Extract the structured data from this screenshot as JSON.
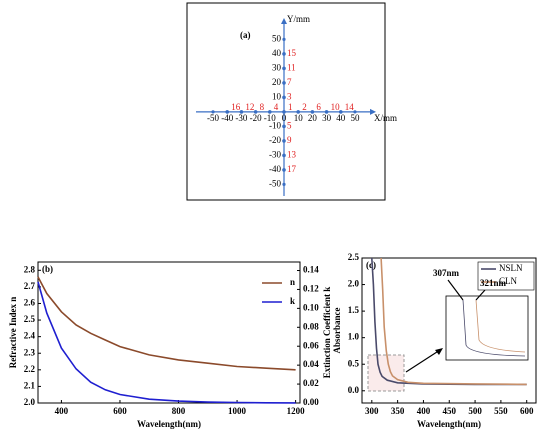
{
  "chart_data": [
    {
      "type": "scatter",
      "title": "(a)",
      "x_label": "X/mm",
      "y_label": "Y/mm",
      "xlim": [
        -62,
        62
      ],
      "ylim": [
        -58,
        62
      ],
      "xticks": [
        -50,
        -40,
        -30,
        -20,
        -10,
        0,
        10,
        20,
        30,
        40,
        50
      ],
      "yticks": [
        -50,
        -40,
        -30,
        -20,
        -10,
        10,
        20,
        30,
        40,
        50
      ],
      "axis_color": "#3a6fc4",
      "label_color": "#e02020",
      "x": [
        -40,
        -30,
        -20,
        -10,
        0,
        10,
        20,
        30,
        40,
        0,
        0,
        0,
        0,
        0,
        0,
        0,
        0
      ],
      "values": [
        0,
        0,
        0,
        0,
        0,
        0,
        0,
        0,
        0,
        10,
        20,
        30,
        40,
        -10,
        -20,
        -30,
        -40
      ],
      "point_labels": [
        16,
        12,
        8,
        4,
        1,
        2,
        6,
        10,
        14,
        3,
        7,
        11,
        15,
        5,
        9,
        13,
        17
      ]
    },
    {
      "type": "line",
      "title": "(b)",
      "x_label": "Wavelength(nm)",
      "y_label": "Refractive Index n",
      "y2_label": "Extinction Coefficient k",
      "xlim": [
        320,
        1215
      ],
      "ylim": [
        2.0,
        2.85
      ],
      "y2lim": [
        0,
        0.149
      ],
      "xticks": [
        400,
        600,
        800,
        1000,
        1200
      ],
      "yticks": [
        {
          "value": 2.0,
          "label": "2.0"
        },
        2.1,
        2.2,
        2.3,
        2.4,
        2.5,
        2.6,
        2.7,
        2.8
      ],
      "y2ticks": [
        {
          "value": 0,
          "label": "0.00"
        },
        0.02,
        0.04,
        0.06,
        0.08,
        {
          "value": 0.1,
          "label": "0.10"
        },
        0.12,
        0.14
      ],
      "x": [
        320,
        350,
        400,
        450,
        500,
        550,
        600,
        700,
        800,
        900,
        1000,
        1100,
        1200
      ],
      "series": [
        {
          "name": "n",
          "color": "#8b4a2b",
          "values": [
            2.76,
            2.66,
            2.55,
            2.47,
            2.42,
            2.38,
            2.34,
            2.29,
            2.26,
            2.24,
            2.22,
            2.21,
            2.2
          ]
        },
        {
          "name": "k",
          "color": "#1f1fd0",
          "axis": "y2",
          "values": [
            0.128,
            0.095,
            0.058,
            0.036,
            0.022,
            0.014,
            0.009,
            0.004,
            0.002,
            0.001,
            0.0005,
            0.0002,
            0.0001
          ]
        }
      ]
    },
    {
      "type": "line",
      "title": "(c)",
      "x_label": "Wavelength(nm)",
      "y_label": "Absorbance",
      "xlim": [
        281,
        618
      ],
      "ylim": [
        -0.23,
        2.5
      ],
      "xticks": [
        300,
        350,
        400,
        450,
        500,
        550,
        600
      ],
      "yticks": [
        {
          "value": 0,
          "label": "0.0"
        },
        0.5,
        {
          "value": 1,
          "label": "1.0"
        },
        1.5,
        {
          "value": 2,
          "label": "2.0"
        },
        2.5
      ],
      "annotations": [
        "307nm",
        "321nm"
      ],
      "series": [
        {
          "name": "NSLN",
          "color": "#4a4a6a",
          "x": [
            300,
            303,
            306,
            309,
            312,
            316,
            320,
            330,
            350,
            400,
            500,
            600
          ],
          "values": [
            2.5,
            2.0,
            1.3,
            0.8,
            0.5,
            0.35,
            0.27,
            0.2,
            0.15,
            0.13,
            0.12,
            0.12
          ]
        },
        {
          "name": "CLN",
          "color": "#c8906a",
          "x": [
            318,
            321,
            324,
            328,
            332,
            336,
            340,
            350,
            370,
            400,
            500,
            600
          ],
          "values": [
            2.5,
            1.9,
            1.2,
            0.75,
            0.5,
            0.36,
            0.28,
            0.21,
            0.16,
            0.14,
            0.13,
            0.12
          ]
        }
      ]
    }
  ]
}
